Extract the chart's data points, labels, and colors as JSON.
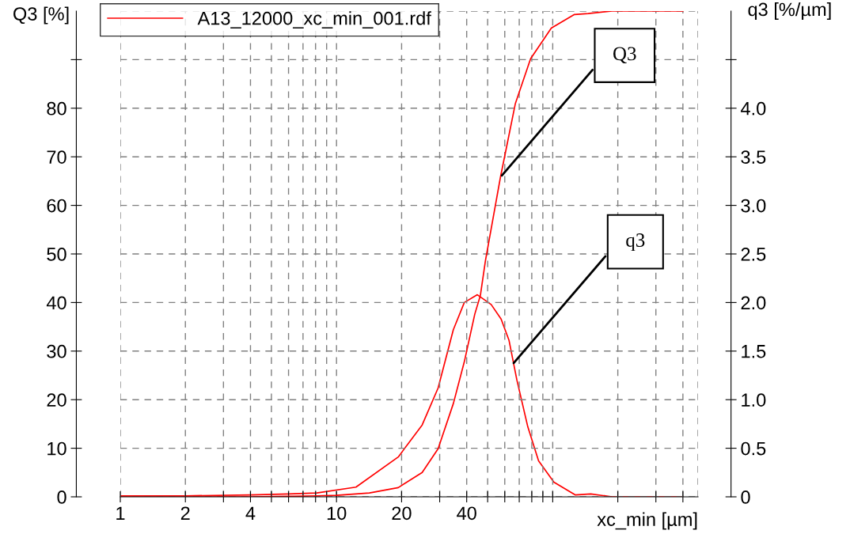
{
  "chart_data": {
    "type": "line",
    "ylabel": "Q3 [%]",
    "y2label": "q3 [%/µm]",
    "xlabel": "xc_min [µm]",
    "log": "x",
    "grid": true,
    "legend": "top left",
    "line_style": "solid",
    "marker": "none",
    "xlim": [
      1,
      470
    ],
    "xticks": [
      1,
      2,
      {
        "value": 3,
        "label": null
      },
      4,
      {
        "value": 5,
        "label": null
      },
      {
        "value": 6,
        "label": null
      },
      {
        "value": 7,
        "label": null
      },
      {
        "value": 8,
        "label": null
      },
      {
        "value": 9,
        "label": null
      },
      10,
      20,
      {
        "value": 30,
        "label": null
      },
      40,
      {
        "value": 50,
        "label": null
      },
      {
        "value": 60,
        "label": null
      },
      {
        "value": 70,
        "label": null
      },
      {
        "value": 80,
        "label": null
      },
      {
        "value": 90,
        "label": null
      },
      {
        "value": 100,
        "label": null
      },
      {
        "value": 200,
        "label": null
      },
      {
        "value": 300,
        "label": null
      },
      {
        "value": 400,
        "label": null
      }
    ],
    "ylim": [
      0,
      100
    ],
    "yticks": [
      0,
      10,
      20,
      30,
      40,
      50,
      60,
      70,
      80,
      {
        "value": 90,
        "label": null
      }
    ],
    "y2lim": [
      0,
      5.0
    ],
    "y2ticks": [
      {
        "value": 0,
        "label": "0"
      },
      0.5,
      {
        "value": 1,
        "label": "1.0"
      },
      1.5,
      {
        "value": 2,
        "label": "2.0"
      },
      2.5,
      {
        "value": 3,
        "label": "3.0"
      },
      3.5,
      {
        "value": 4,
        "label": "4.0"
      },
      {
        "value": 4.5,
        "label": null
      }
    ],
    "series": [
      {
        "name": "A13_12000_xc_min_001.rdf",
        "color": "#ff0000",
        "x": [
          1,
          2,
          4,
          6,
          8.1,
          10,
          14.2,
          19.3,
          24.9,
          29.5,
          34.7,
          39,
          43.6,
          46.3,
          48.8,
          57.3,
          67.2,
          79,
          98.5,
          126,
          146,
          188,
          400
        ],
        "values": [
          0,
          0,
          0,
          0.1,
          0.2,
          0.3,
          0.8,
          1.9,
          5,
          9.9,
          19.2,
          27.8,
          37.6,
          41.5,
          48.5,
          65.8,
          81,
          90.2,
          96.5,
          99.3,
          99.5,
          100,
          100
        ]
      },
      {
        "axis": "y2",
        "color": "#ff0000",
        "x": [
          1,
          2,
          4,
          6,
          8.1,
          12.3,
          19.3,
          24.9,
          29.5,
          34.7,
          39,
          44.8,
          51.9,
          57.7,
          62.8,
          68.3,
          76.7,
          86,
          101.3,
          127,
          150,
          188,
          400
        ],
        "values": [
          0.01,
          0.01,
          0.02,
          0.03,
          0.04,
          0.1,
          0.41,
          0.74,
          1.12,
          1.72,
          2.0,
          2.08,
          1.98,
          1.83,
          1.61,
          1.2,
          0.72,
          0.37,
          0.15,
          0.02,
          0.03,
          0,
          0
        ]
      }
    ],
    "annotations": [
      {
        "text": "Q3",
        "x": 57.3,
        "y": 65.8
      },
      {
        "text": "q3",
        "x": 65,
        "y": 27.2
      }
    ]
  }
}
